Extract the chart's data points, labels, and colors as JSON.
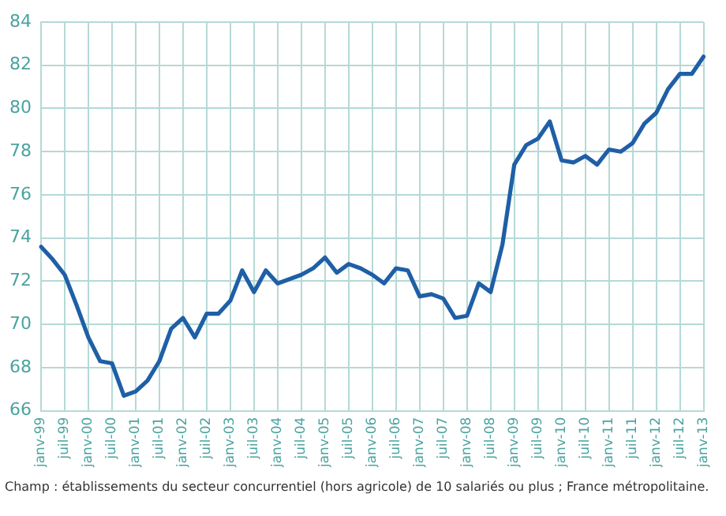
{
  "chart_data": {
    "type": "line",
    "categories": [
      "janv-99",
      null,
      "juil-99",
      null,
      "janv-00",
      null,
      "juil-00",
      null,
      "janv-01",
      null,
      "juil-01",
      null,
      "janv-02",
      null,
      "juil-02",
      null,
      "janv-03",
      null,
      "juil-03",
      null,
      "janv-04",
      null,
      "juil-04",
      null,
      "janv-05",
      null,
      "juil-05",
      null,
      "janv-06",
      null,
      "juil-06",
      null,
      "janv-07",
      null,
      "juil-07",
      null,
      "janv-08",
      null,
      "juil-08",
      null,
      "janv-09",
      null,
      "juil-09",
      null,
      "janv-10",
      null,
      "juil-10",
      null,
      "janv-11",
      null,
      "juil-11",
      null,
      "janv-12",
      null,
      "juil-12",
      null,
      "janv-13"
    ],
    "series": [
      {
        "color": "#1f5fa6",
        "values": [
          73.6,
          73.0,
          72.3,
          70.9,
          69.4,
          68.3,
          68.2,
          66.7,
          66.9,
          67.4,
          68.3,
          69.8,
          70.3,
          69.4,
          70.5,
          70.5,
          71.1,
          72.5,
          71.5,
          72.5,
          71.9,
          72.1,
          72.3,
          72.6,
          73.1,
          72.4,
          72.8,
          72.6,
          72.3,
          71.9,
          72.6,
          72.5,
          71.3,
          71.4,
          71.2,
          70.3,
          70.4,
          71.9,
          71.5,
          73.7,
          77.4,
          78.3,
          78.6,
          79.4,
          77.6,
          77.5,
          77.8,
          77.4,
          78.1,
          78.0,
          78.4,
          79.3,
          79.8,
          80.9,
          81.6,
          81.6,
          82.4
        ]
      }
    ],
    "ylim": [
      66,
      84
    ],
    "yticks": [
      66,
      68,
      70,
      72,
      74,
      76,
      78,
      80,
      82,
      84
    ],
    "grid": true,
    "legend": false,
    "marker": "none",
    "line_style": "solid",
    "annotations": [
      "Champ : établissements du secteur concurrentiel (hors agricole) de 10 salariés ou plus ; France métropolitaine."
    ]
  }
}
